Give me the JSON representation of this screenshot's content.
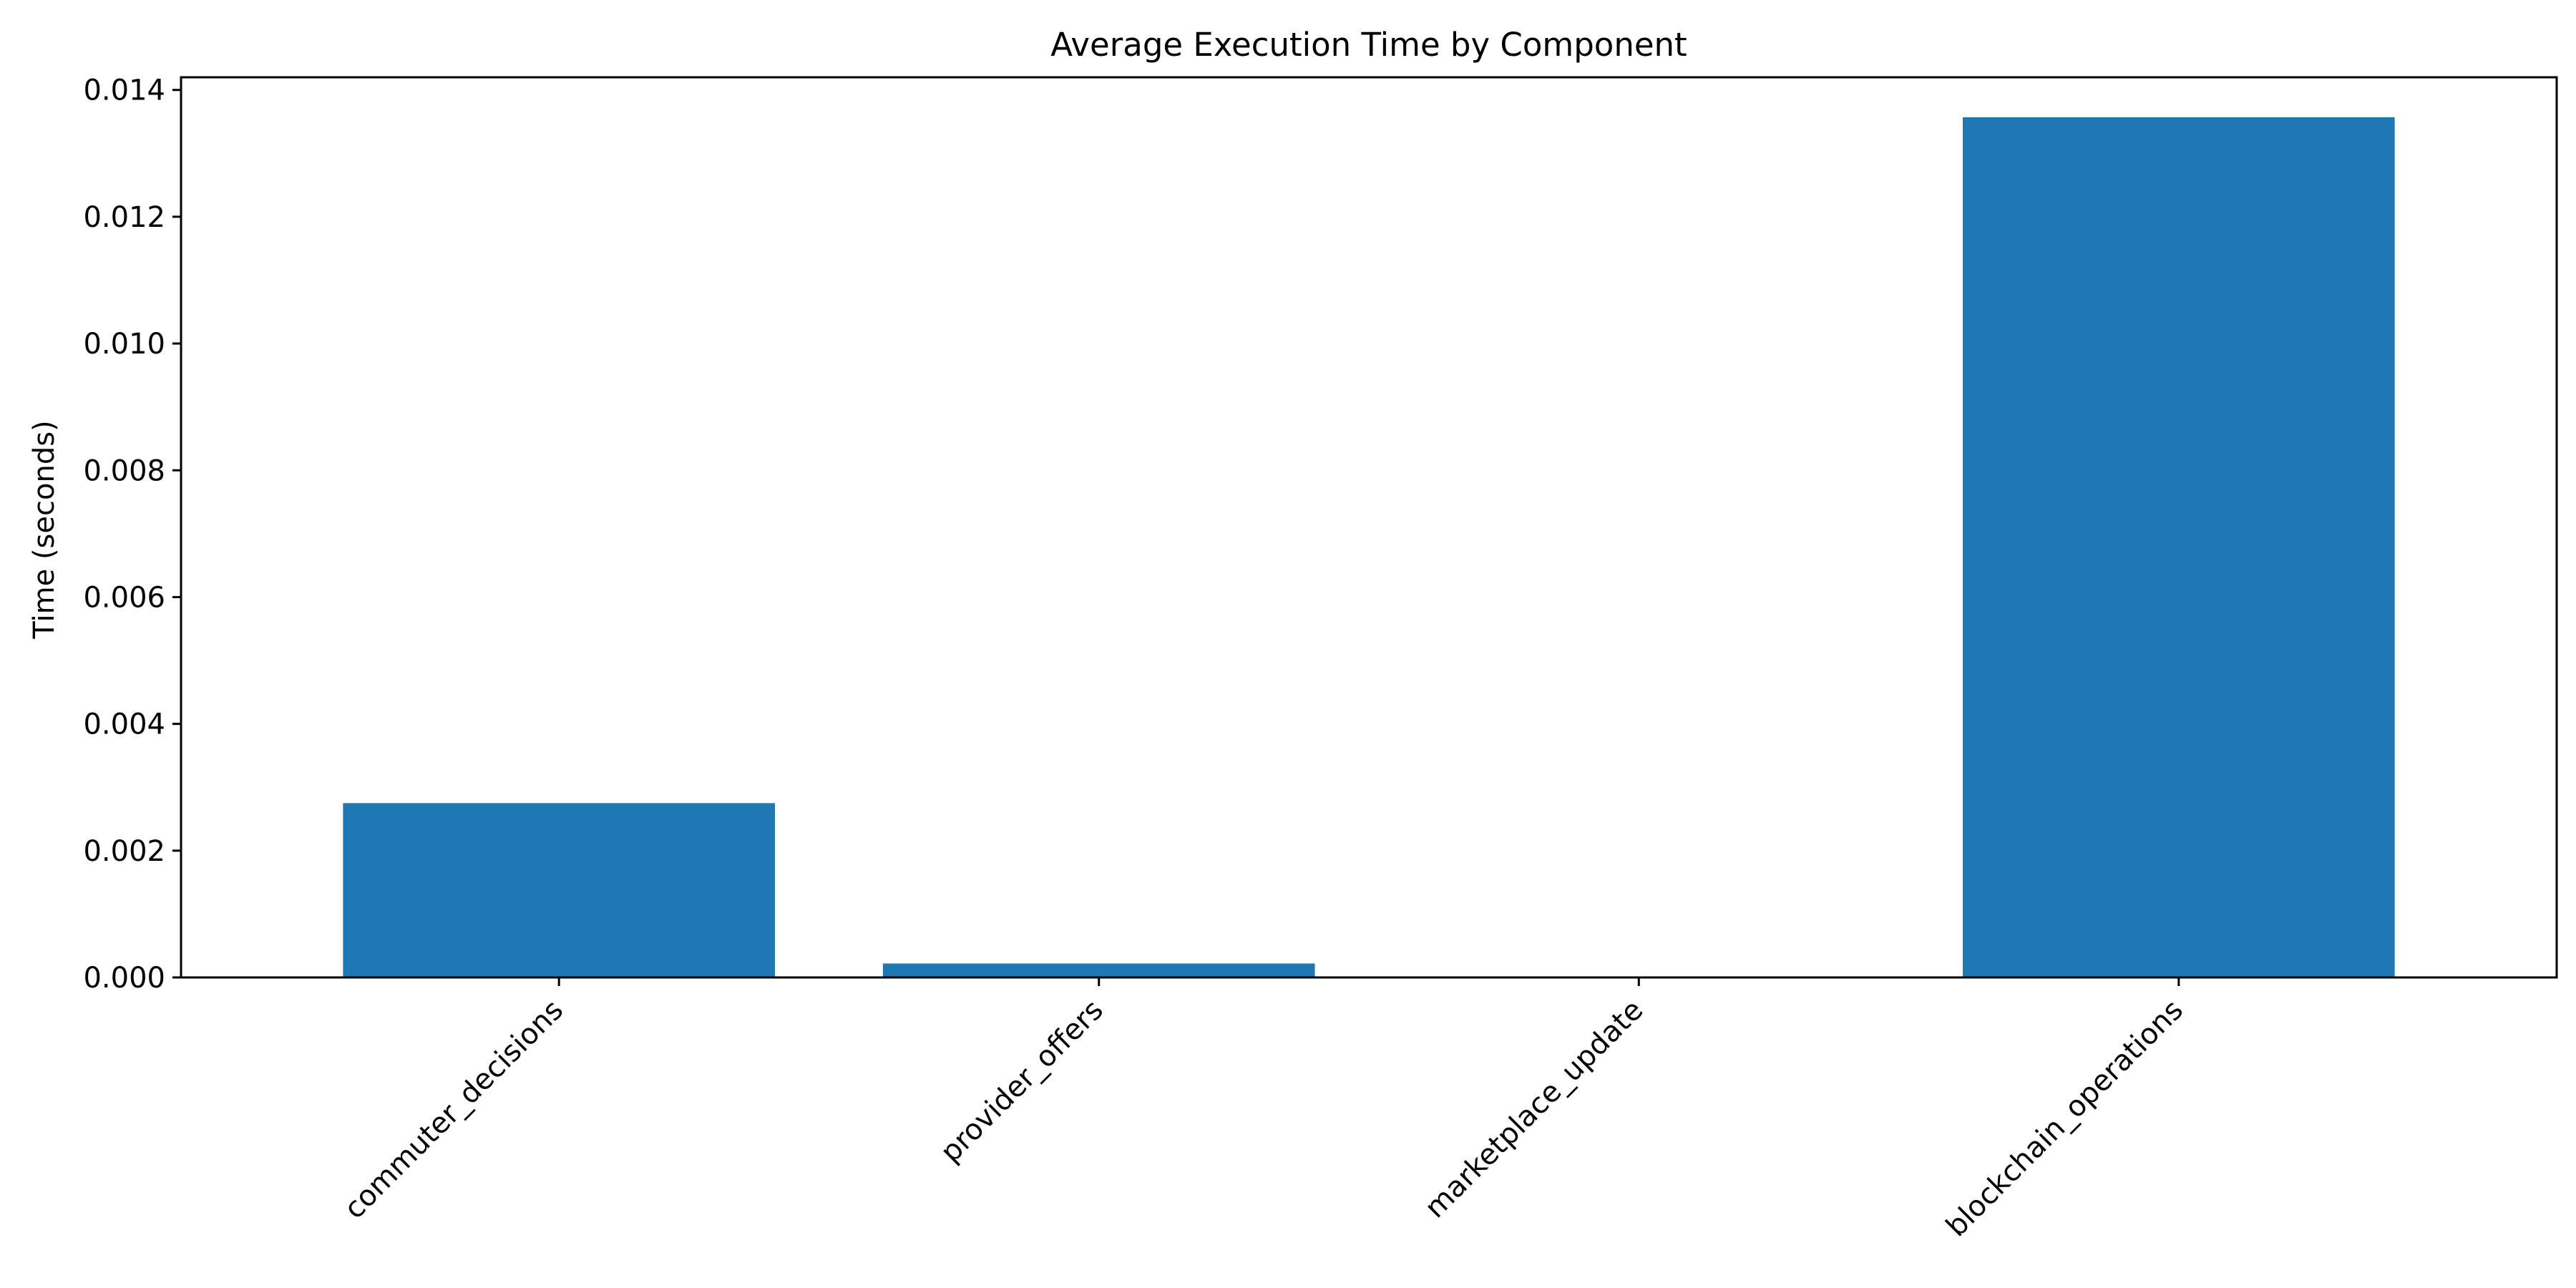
{
  "chart_data": {
    "type": "bar",
    "title": "Average Execution Time by Component",
    "xlabel": "",
    "ylabel": "Time (seconds)",
    "categories": [
      "commuter_decisions",
      "provider_offers",
      "marketplace_update",
      "blockchain_operations"
    ],
    "values": [
      0.00275,
      0.00022,
      2e-06,
      0.01357
    ],
    "ylim": [
      0,
      0.0142
    ],
    "yticks": [
      "0.000",
      "0.002",
      "0.004",
      "0.006",
      "0.008",
      "0.010",
      "0.012",
      "0.014"
    ],
    "grid": false,
    "bar_color": "#1f77b4"
  }
}
